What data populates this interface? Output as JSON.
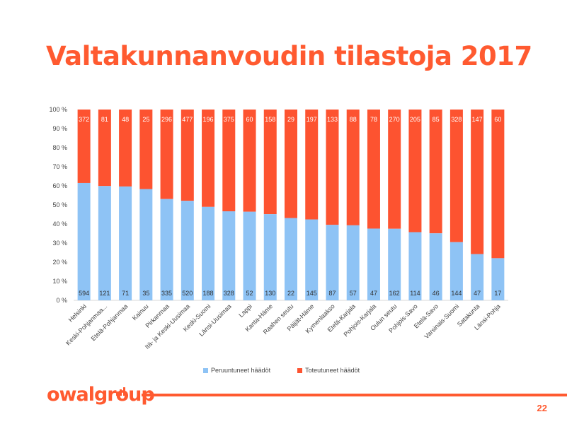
{
  "slide": {
    "title": "Valtakunnanvoudin tilastoja 2017",
    "page_number": "22",
    "logo_text": "owalgroup",
    "accent_color": "#ff5a30"
  },
  "chart_data": {
    "type": "bar",
    "stacked": "percent",
    "title": "",
    "xlabel": "",
    "ylabel": "",
    "ylim": [
      0,
      100
    ],
    "yticks": [
      "0 %",
      "10 %",
      "20 %",
      "30 %",
      "40 %",
      "50 %",
      "60 %",
      "70 %",
      "80 %",
      "90 %",
      "100 %"
    ],
    "categories": [
      "Helsinki",
      "Keski-Pohjanmaa...",
      "Etelä-Pohjanmaa",
      "Kainuu",
      "Pirkanmaa",
      "Itä- ja Keski-Uusimaa",
      "Keski-Suomi",
      "Länsi-Uusimaa",
      "Lappi",
      "Kanta-Häme",
      "Raahen seutu",
      "Päijät-Häme",
      "Kymenlaakso",
      "Etelä-Karjala",
      "Pohjois-Karjala",
      "Oulun seutu",
      "Pohjois-Savo",
      "Etelä-Savo",
      "Varsinais-Suomi",
      "Satakunta",
      "Länsi-Pohja"
    ],
    "series": [
      {
        "name": "Peruuntuneet häädöt",
        "color": "#8ec3f5",
        "values": [
          594,
          121,
          71,
          35,
          335,
          520,
          188,
          328,
          52,
          130,
          22,
          145,
          87,
          57,
          47,
          162,
          114,
          46,
          144,
          47,
          17
        ]
      },
      {
        "name": "Toteutuneet häädöt",
        "color": "#fd5330",
        "values": [
          372,
          81,
          48,
          25,
          296,
          477,
          196,
          375,
          60,
          158,
          29,
          197,
          133,
          88,
          78,
          270,
          205,
          85,
          328,
          147,
          60
        ]
      }
    ],
    "grid": false,
    "legend": "bottom"
  }
}
